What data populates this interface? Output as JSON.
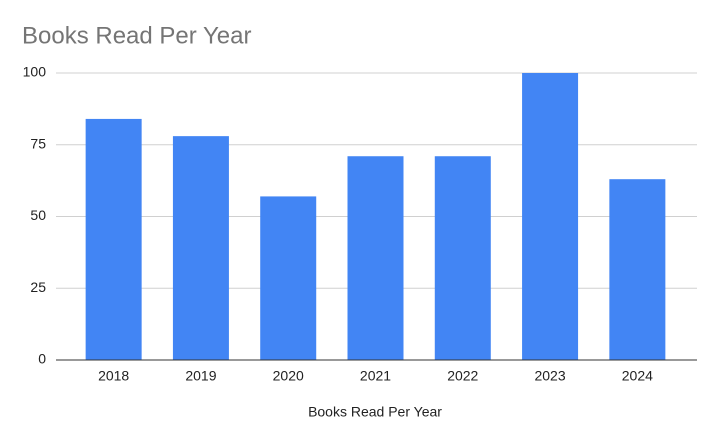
{
  "chart_data": {
    "type": "bar",
    "title": "Books Read Per Year",
    "x_label": "Books Read Per Year",
    "categories": [
      "2018",
      "2019",
      "2020",
      "2021",
      "2022",
      "2023",
      "2024"
    ],
    "values": [
      84,
      78,
      57,
      71,
      71,
      100,
      63
    ],
    "color": "#4285f4",
    "ylim": [
      0,
      100
    ],
    "yticks": [
      0,
      25,
      50,
      75,
      100
    ],
    "grid": true
  }
}
